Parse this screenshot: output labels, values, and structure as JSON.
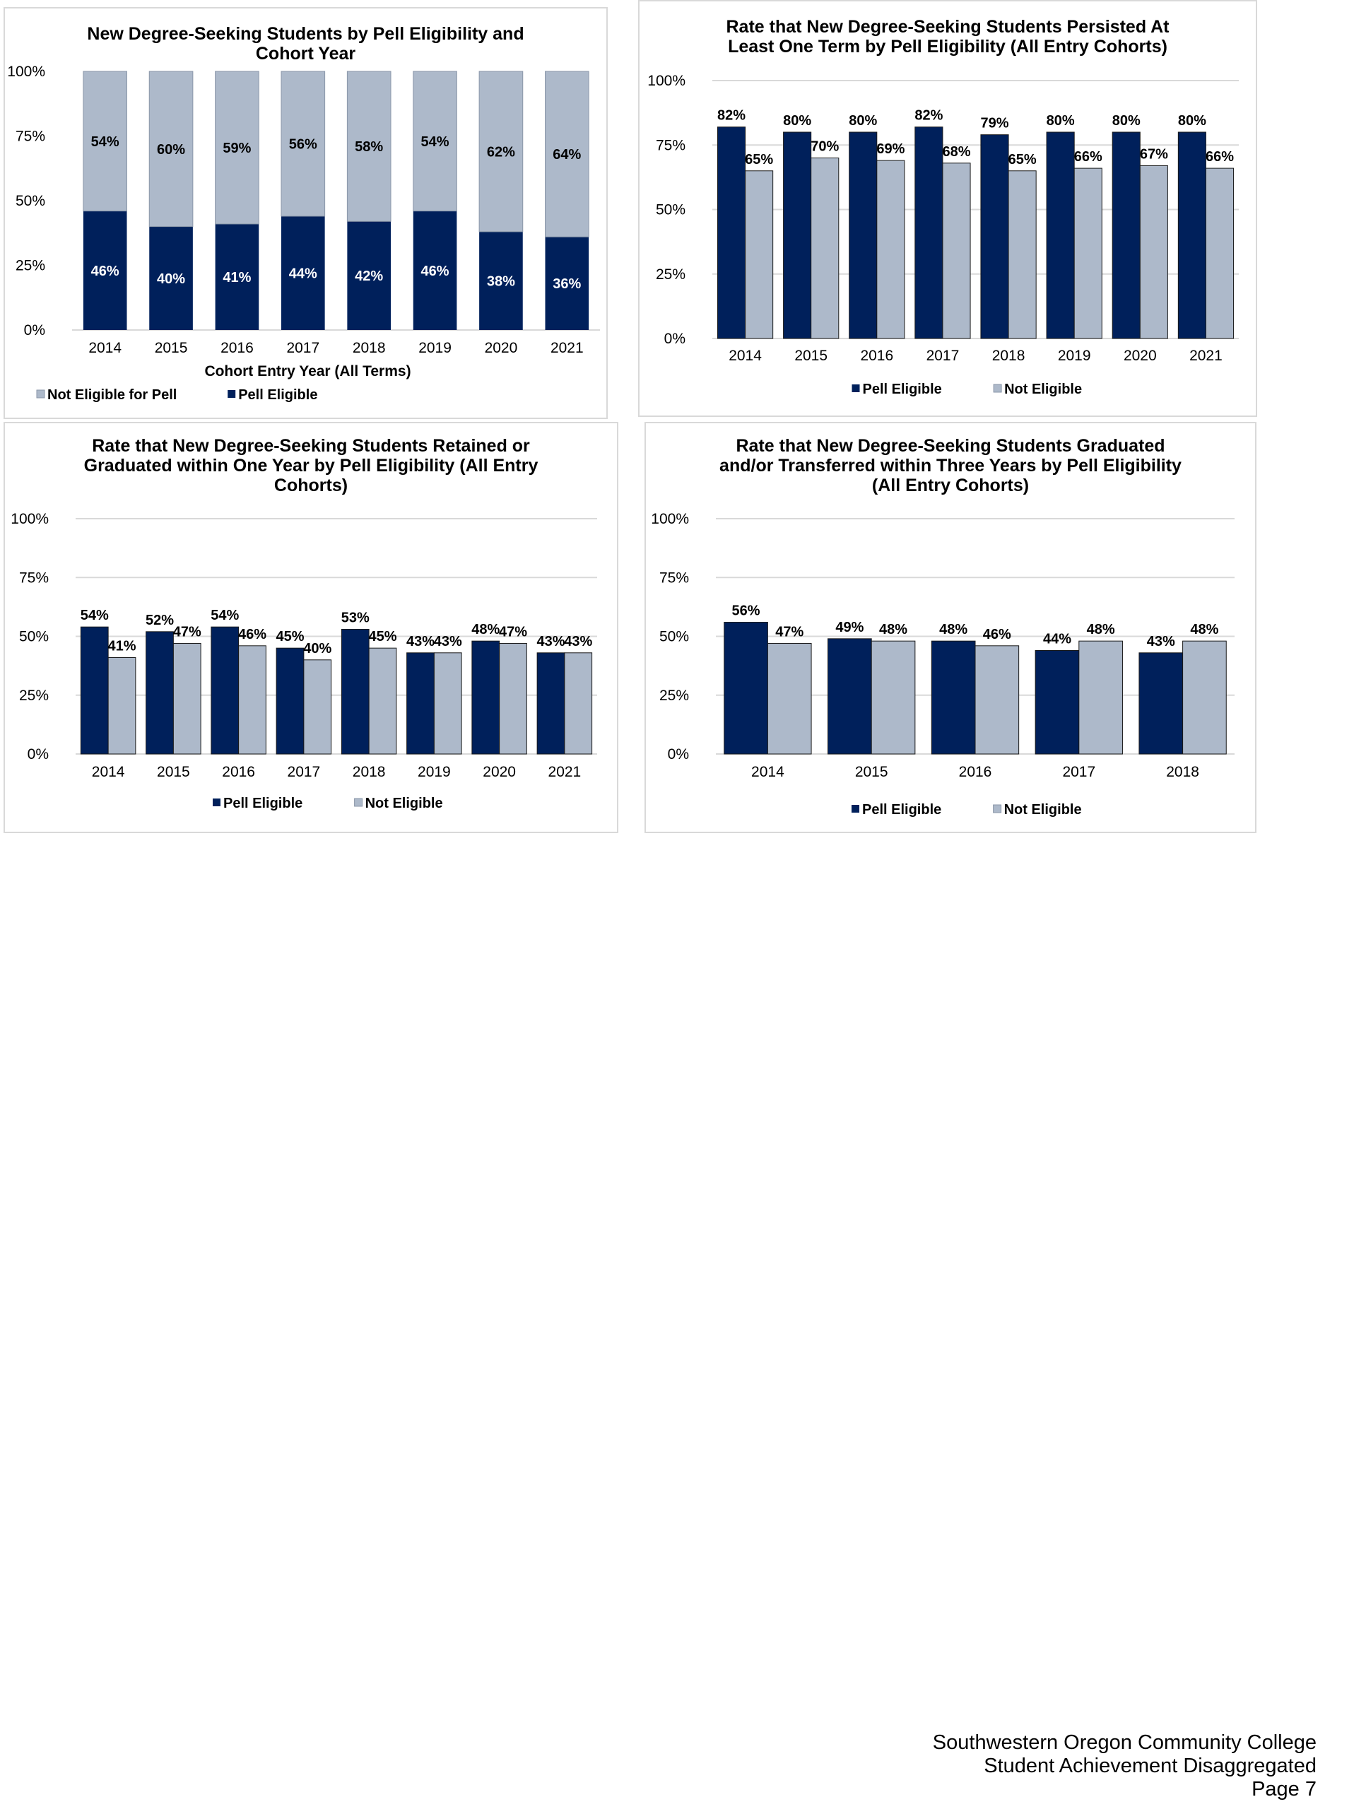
{
  "footer": {
    "line1": "Southwestern Oregon Community College",
    "line2": "Student Achievement Disaggregated",
    "line3": "Page 7"
  },
  "colors": {
    "pell": "#00205b",
    "not_pell": "#adb9ca",
    "grid": "#d9d9d9",
    "text": "#000000",
    "white": "#ffffff"
  },
  "chart_data": [
    {
      "type": "bar",
      "stacked": true,
      "title_lines": [
        "New Degree-Seeking Students by Pell Eligibility and",
        "Cohort Year"
      ],
      "xlabel": "Cohort Entry Year (All Terms)",
      "ylabel": "",
      "ylim": [
        0,
        100
      ],
      "yticks": [
        "0%",
        "25%",
        "50%",
        "75%",
        "100%"
      ],
      "grid": false,
      "legend_position": "bottom-left",
      "categories": [
        "2014",
        "2015",
        "2016",
        "2017",
        "2018",
        "2019",
        "2020",
        "2021"
      ],
      "series": [
        {
          "name": "Pell Eligible",
          "values": [
            46,
            40,
            41,
            44,
            42,
            46,
            38,
            36
          ],
          "labels": [
            "46%",
            "40%",
            "41%",
            "44%",
            "42%",
            "46%",
            "38%",
            "36%"
          ]
        },
        {
          "name": "Not Eligible for Pell",
          "values": [
            54,
            60,
            59,
            56,
            58,
            54,
            62,
            64
          ],
          "labels": [
            "54%",
            "60%",
            "59%",
            "56%",
            "58%",
            "54%",
            "62%",
            "64%"
          ]
        }
      ],
      "legend_order": [
        "Not Eligible for Pell",
        "Pell Eligible"
      ]
    },
    {
      "type": "bar",
      "title_lines": [
        "Rate that New Degree-Seeking Students Persisted At",
        "Least One Term by Pell Eligibility (All Entry Cohorts)"
      ],
      "xlabel": "",
      "ylabel": "",
      "ylim": [
        0,
        100
      ],
      "yticks": [
        "0%",
        "25%",
        "50%",
        "75%",
        "100%"
      ],
      "grid": true,
      "legend_position": "bottom",
      "categories": [
        "2014",
        "2015",
        "2016",
        "2017",
        "2018",
        "2019",
        "2020",
        "2021"
      ],
      "series": [
        {
          "name": "Pell Eligible",
          "values": [
            82,
            80,
            80,
            82,
            79,
            80,
            80,
            80
          ],
          "labels": [
            "82%",
            "80%",
            "80%",
            "82%",
            "79%",
            "80%",
            "80%",
            "80%"
          ]
        },
        {
          "name": "Not Eligible",
          "values": [
            65,
            70,
            69,
            68,
            65,
            66,
            67,
            66
          ],
          "labels": [
            "65%",
            "70%",
            "69%",
            "68%",
            "65%",
            "66%",
            "67%",
            "66%"
          ]
        }
      ]
    },
    {
      "type": "bar",
      "title_lines": [
        "Rate that New Degree-Seeking Students Retained or",
        "Graduated within One Year by Pell Eligibility (All Entry",
        "Cohorts)"
      ],
      "xlabel": "",
      "ylabel": "",
      "ylim": [
        0,
        100
      ],
      "yticks": [
        "0%",
        "25%",
        "50%",
        "75%",
        "100%"
      ],
      "grid": true,
      "legend_position": "bottom",
      "categories": [
        "2014",
        "2015",
        "2016",
        "2017",
        "2018",
        "2019",
        "2020",
        "2021"
      ],
      "series": [
        {
          "name": "Pell Eligible",
          "values": [
            54,
            52,
            54,
            45,
            53,
            43,
            48,
            43
          ],
          "labels": [
            "54%",
            "52%",
            "54%",
            "45%",
            "53%",
            "43%",
            "48%",
            "43%"
          ]
        },
        {
          "name": "Not Eligible",
          "values": [
            41,
            47,
            46,
            40,
            45,
            43,
            47,
            43
          ],
          "labels": [
            "41%",
            "47%",
            "46%",
            "40%",
            "45%",
            "43%",
            "47%",
            "43%"
          ]
        }
      ]
    },
    {
      "type": "bar",
      "title_lines": [
        "Rate that New Degree-Seeking Students Graduated",
        "and/or Transferred within Three Years by Pell Eligibility",
        "(All Entry Cohorts)"
      ],
      "xlabel": "",
      "ylabel": "",
      "ylim": [
        0,
        100
      ],
      "yticks": [
        "0%",
        "25%",
        "50%",
        "75%",
        "100%"
      ],
      "grid": true,
      "legend_position": "bottom",
      "categories": [
        "2014",
        "2015",
        "2016",
        "2017",
        "2018"
      ],
      "series": [
        {
          "name": "Pell Eligible",
          "values": [
            56,
            49,
            48,
            44,
            43
          ],
          "labels": [
            "56%",
            "49%",
            "48%",
            "44%",
            "43%"
          ]
        },
        {
          "name": "Not Eligible",
          "values": [
            47,
            48,
            46,
            48,
            48
          ],
          "labels": [
            "47%",
            "48%",
            "46%",
            "48%",
            "48%"
          ]
        }
      ]
    }
  ]
}
